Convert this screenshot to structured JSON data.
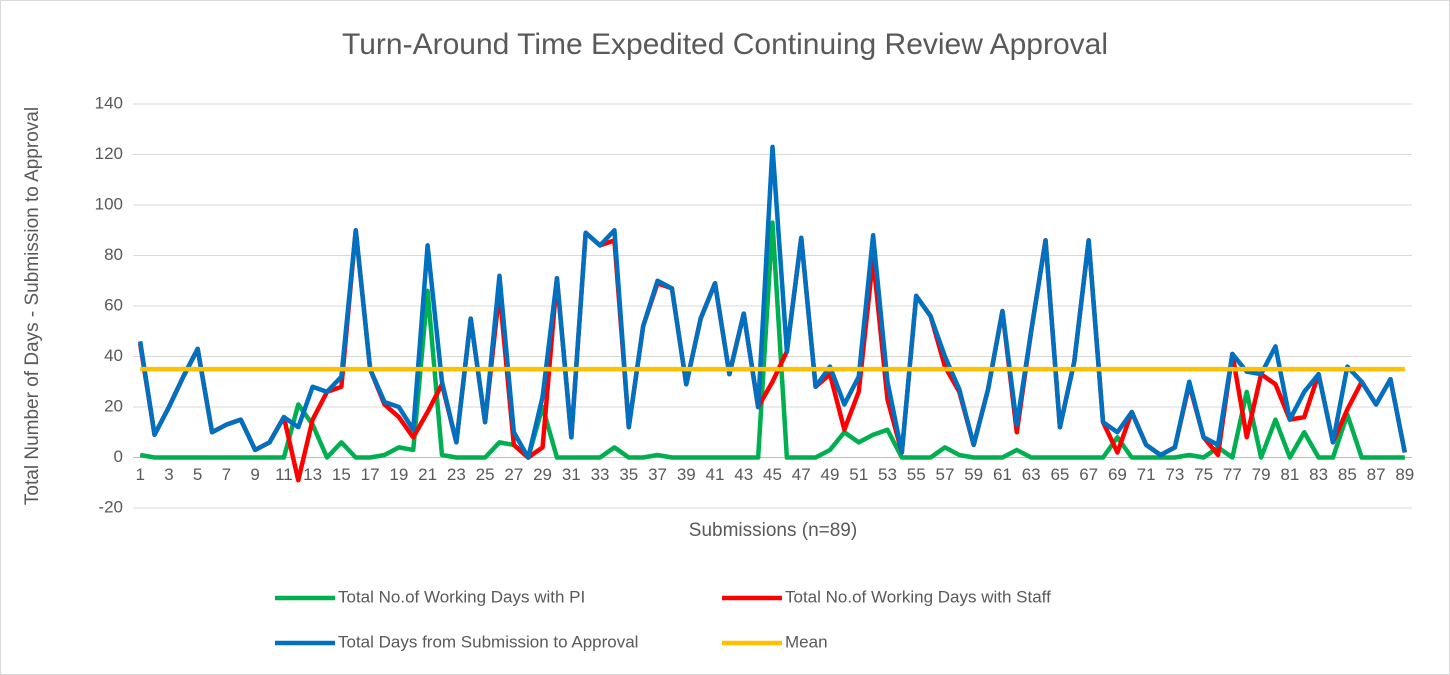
{
  "chart_data": {
    "type": "line",
    "title": "Turn-Around Time Expedited Continuing Review Approval",
    "x_label": "Submissions (n=89)",
    "y_label": "Total Number of Days - Submission to Approval",
    "categories": [
      1,
      null,
      3,
      null,
      5,
      null,
      7,
      null,
      9,
      null,
      11,
      null,
      13,
      null,
      15,
      null,
      17,
      null,
      19,
      null,
      21,
      null,
      23,
      null,
      25,
      null,
      27,
      null,
      29,
      null,
      31,
      null,
      33,
      null,
      35,
      null,
      37,
      null,
      39,
      null,
      41,
      null,
      43,
      null,
      45,
      null,
      47,
      null,
      49,
      null,
      51,
      null,
      53,
      null,
      55,
      null,
      57,
      null,
      59,
      null,
      61,
      null,
      63,
      null,
      65,
      null,
      67,
      null,
      69,
      null,
      71,
      null,
      73,
      null,
      75,
      null,
      77,
      null,
      79,
      null,
      81,
      null,
      83,
      null,
      85,
      null,
      87,
      null,
      89
    ],
    "ylim": [
      -20,
      140
    ],
    "yticks": [
      -20,
      0,
      20,
      40,
      60,
      80,
      100,
      120,
      140
    ],
    "grid": true,
    "legend": "bottom",
    "series": [
      {
        "name": "Total No.of Working Days with PI",
        "color": "#00b050",
        "values": [
          1,
          0,
          0,
          0,
          0,
          0,
          0,
          0,
          0,
          0,
          0,
          21,
          13,
          0,
          6,
          0,
          0,
          1,
          4,
          3,
          66,
          1,
          0,
          0,
          0,
          6,
          5,
          0,
          20,
          0,
          0,
          0,
          0,
          4,
          0,
          0,
          1,
          0,
          0,
          0,
          0,
          0,
          0,
          0,
          93,
          0,
          0,
          0,
          3,
          10,
          6,
          9,
          11,
          0,
          0,
          0,
          4,
          1,
          0,
          0,
          0,
          3,
          0,
          0,
          0,
          0,
          0,
          0,
          8,
          0,
          0,
          0,
          0,
          1,
          0,
          4,
          0,
          26,
          0,
          15,
          0,
          10,
          0,
          0,
          17,
          0,
          0,
          0,
          0
        ]
      },
      {
        "name": "Total No.of Working Days with Staff",
        "color": "#ff0000",
        "values": [
          45,
          9,
          20,
          32,
          43,
          10,
          13,
          15,
          3,
          6,
          16,
          -9,
          15,
          26,
          28,
          90,
          35,
          21,
          16,
          8,
          18,
          29,
          6,
          55,
          14,
          66,
          5,
          0,
          4,
          71,
          8,
          89,
          84,
          86,
          12,
          52,
          69,
          67,
          29,
          55,
          69,
          33,
          57,
          20,
          30,
          42,
          87,
          28,
          33,
          11,
          26,
          79,
          23,
          2,
          64,
          56,
          36,
          26,
          5,
          27,
          58,
          10,
          50,
          86,
          12,
          38,
          86,
          14,
          2,
          18,
          5,
          1,
          4,
          29,
          8,
          1,
          41,
          8,
          33,
          29,
          15,
          16,
          33,
          6,
          19,
          30,
          21,
          31,
          2
        ]
      },
      {
        "name": "Total Days from Submission to Approval",
        "color": "#0070c0",
        "values": [
          46,
          9,
          20,
          32,
          43,
          10,
          13,
          15,
          3,
          6,
          16,
          12,
          28,
          26,
          32,
          90,
          35,
          22,
          20,
          11,
          84,
          30,
          6,
          55,
          14,
          72,
          10,
          0,
          24,
          71,
          8,
          89,
          84,
          90,
          12,
          52,
          70,
          67,
          29,
          55,
          69,
          33,
          57,
          20,
          123,
          42,
          87,
          28,
          36,
          21,
          32,
          88,
          30,
          2,
          64,
          56,
          40,
          27,
          5,
          27,
          58,
          13,
          50,
          86,
          12,
          38,
          86,
          14,
          10,
          18,
          5,
          1,
          4,
          30,
          8,
          5,
          41,
          34,
          33,
          44,
          15,
          26,
          33,
          6,
          36,
          30,
          21,
          31,
          2
        ]
      },
      {
        "name": "Mean",
        "color": "#ffc000",
        "values": [
          35,
          35,
          35,
          35,
          35,
          35,
          35,
          35,
          35,
          35,
          35,
          35,
          35,
          35,
          35,
          35,
          35,
          35,
          35,
          35,
          35,
          35,
          35,
          35,
          35,
          35,
          35,
          35,
          35,
          35,
          35,
          35,
          35,
          35,
          35,
          35,
          35,
          35,
          35,
          35,
          35,
          35,
          35,
          35,
          35,
          35,
          35,
          35,
          35,
          35,
          35,
          35,
          35,
          35,
          35,
          35,
          35,
          35,
          35,
          35,
          35,
          35,
          35,
          35,
          35,
          35,
          35,
          35,
          35,
          35,
          35,
          35,
          35,
          35,
          35,
          35,
          35,
          35,
          35,
          35,
          35,
          35,
          35,
          35,
          35,
          35,
          35,
          35,
          35
        ]
      }
    ]
  }
}
